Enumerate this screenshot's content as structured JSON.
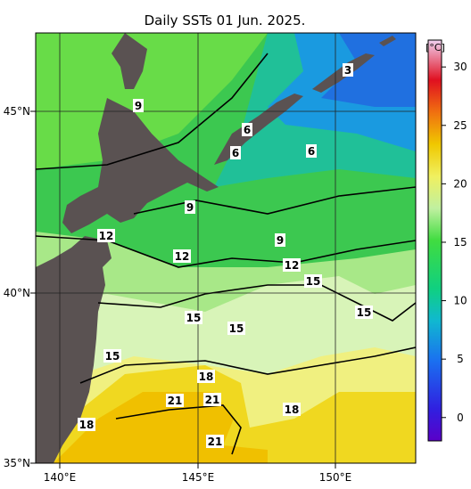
{
  "title": "Daily SSTs 01 Jun. 2025.",
  "map": {
    "lon_labels": [
      "140°E",
      "145°E",
      "150°E"
    ],
    "lat_labels": [
      "35°N",
      "40°N",
      "45°N"
    ],
    "contour_labels": [
      3,
      9,
      6,
      6,
      6,
      9,
      12,
      9,
      12,
      12,
      15,
      15,
      15,
      15,
      15,
      18,
      21,
      21,
      18,
      18,
      21
    ]
  },
  "colorbar": {
    "unit": "[°C]",
    "lim": [
      -2,
      32.3
    ],
    "ticks": [
      0,
      5,
      10,
      15,
      20,
      25,
      30
    ]
  }
}
